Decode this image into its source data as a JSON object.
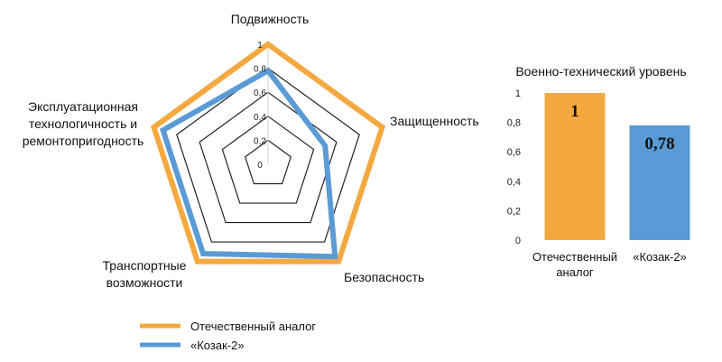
{
  "colors": {
    "orange": "#F4A940",
    "blue": "#5B9BD5",
    "grid": "#222222",
    "axis": "#d0d0d0"
  },
  "chart_data": [
    {
      "type": "radar",
      "title": "",
      "axes": [
        "Подвижность",
        "Защищенность",
        "Безопасность",
        "Транспортные возможности",
        "Эксплуатационная технологичность и ремонтопригодность"
      ],
      "axis_label_lines": [
        [
          "Подвижность"
        ],
        [
          "Защищенность"
        ],
        [
          "Безопасность"
        ],
        [
          "Транспортные",
          "возможности"
        ],
        [
          "Эксплуатационная",
          "технологичность и",
          "ремонтопригодность"
        ]
      ],
      "ticks": [
        "0",
        "0,2",
        "0,4",
        "0,6",
        "0,8",
        "1"
      ],
      "range": [
        0,
        1
      ],
      "legend_position": "bottom",
      "series": [
        {
          "name": "Отечественный аналог",
          "color": "#F4A940",
          "values": [
            1,
            1,
            1,
            1,
            1
          ]
        },
        {
          "name": "«Козак-2»",
          "color": "#5B9BD5",
          "values": [
            0.78,
            0.5,
            0.95,
            0.92,
            0.92
          ]
        }
      ]
    },
    {
      "type": "bar",
      "title": "Военно-технический уровень",
      "categories": [
        "Отечественный аналог",
        "«Козак-2»"
      ],
      "category_label_lines": [
        [
          "Отечественный",
          "аналог"
        ],
        [
          "«Козак-2»"
        ]
      ],
      "values": [
        1,
        0.78
      ],
      "value_labels": [
        "1",
        "0,78"
      ],
      "colors": [
        "#F4A940",
        "#5B9BD5"
      ],
      "ylim": [
        0,
        1
      ],
      "ticks": [
        "0",
        "0,2",
        "0,4",
        "0,6",
        "0,8",
        "1"
      ],
      "grid": false
    }
  ]
}
